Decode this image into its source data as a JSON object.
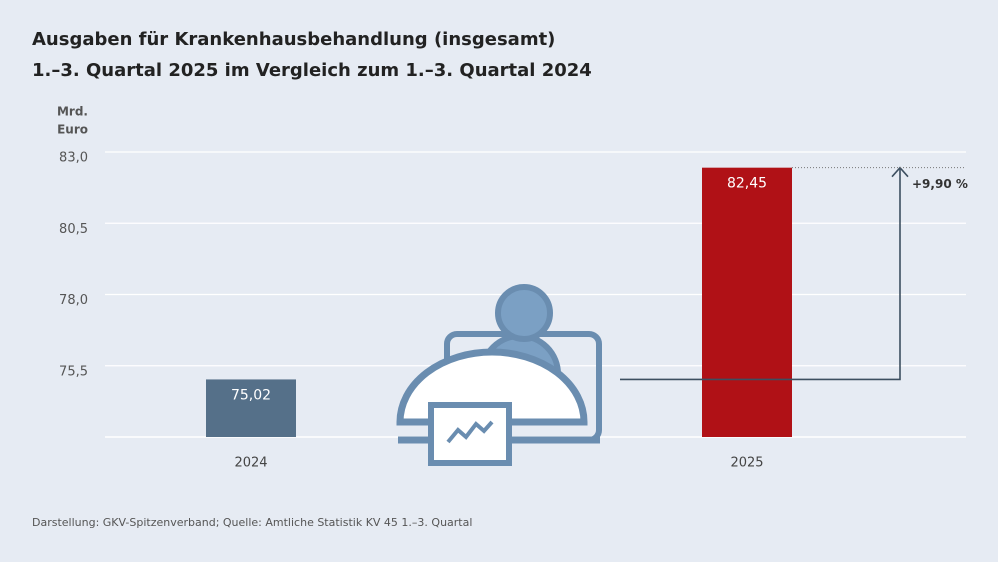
{
  "chart_data": {
    "type": "bar",
    "title": "Ausgaben für Krankenhausbehandlung (insgesamt)",
    "subtitle": "1.–3. Quartal 2025 im Vergleich zum 1.–3. Quartal 2024",
    "y_label_lines": [
      "Mrd.",
      "Euro"
    ],
    "categories": [
      "2024",
      "2025"
    ],
    "values": [
      75.02,
      82.45
    ],
    "value_labels": [
      "75,02",
      "82,45"
    ],
    "colors": [
      "#557089",
      "#b01116"
    ],
    "ylim": [
      73.0,
      83.0
    ],
    "yticks": [
      {
        "value": 75.5,
        "label": "75,5"
      },
      {
        "value": 78.0,
        "label": "78,0"
      },
      {
        "value": 80.5,
        "label": "80,5"
      },
      {
        "value": 83.0,
        "label": "83,0"
      }
    ],
    "grid": true,
    "change_annotation": "+9,90 %",
    "source": "Darstellung: GKV-Spitzenverband; Quelle: Amtliche Statistik KV 45 1.–3. Quartal"
  }
}
